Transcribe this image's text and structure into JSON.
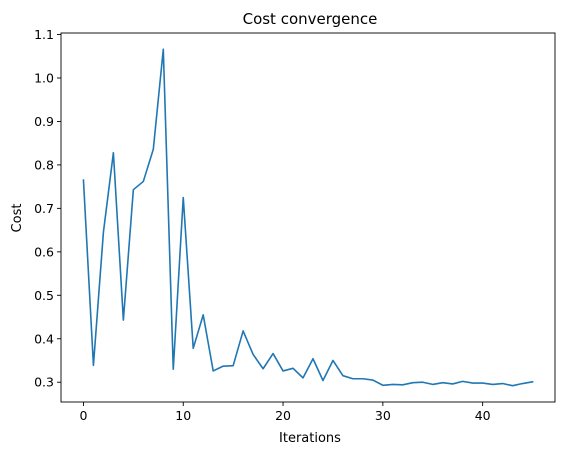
{
  "chart_data": {
    "type": "line",
    "title": "Cost convergence",
    "xlabel": "Iterations",
    "ylabel": "Cost",
    "xlim": [
      -2.25,
      47.25
    ],
    "ylim": [
      0.2545,
      1.1035
    ],
    "xticks": [
      0,
      10,
      20,
      30,
      40
    ],
    "yticks": [
      0.3,
      0.4,
      0.5,
      0.6,
      0.7,
      0.8,
      0.9,
      1.0,
      1.1
    ],
    "ytick_labels": [
      "0.3",
      "0.4",
      "0.5",
      "0.6",
      "0.7",
      "0.8",
      "0.9",
      "1.0",
      "1.1"
    ],
    "grid": false,
    "line_color": "#1f77b4",
    "series": [
      {
        "x": [
          0,
          1,
          2,
          3,
          4,
          5,
          6,
          7,
          8,
          9,
          10,
          11,
          12,
          13,
          14,
          15,
          16,
          17,
          18,
          19,
          20,
          21,
          22,
          23,
          24,
          25,
          26,
          27,
          28,
          29,
          30,
          31,
          32,
          33,
          34,
          35,
          36,
          37,
          38,
          39,
          40,
          41,
          42,
          43,
          44,
          45
        ],
        "values": [
          0.765,
          0.339,
          0.645,
          0.828,
          0.443,
          0.743,
          0.762,
          0.836,
          1.066,
          0.33,
          0.725,
          0.378,
          0.455,
          0.326,
          0.337,
          0.338,
          0.418,
          0.364,
          0.331,
          0.366,
          0.326,
          0.332,
          0.31,
          0.354,
          0.304,
          0.35,
          0.315,
          0.308,
          0.308,
          0.305,
          0.293,
          0.295,
          0.294,
          0.299,
          0.3,
          0.295,
          0.299,
          0.296,
          0.302,
          0.298,
          0.298,
          0.295,
          0.297,
          0.292,
          0.297,
          0.301
        ]
      }
    ]
  }
}
